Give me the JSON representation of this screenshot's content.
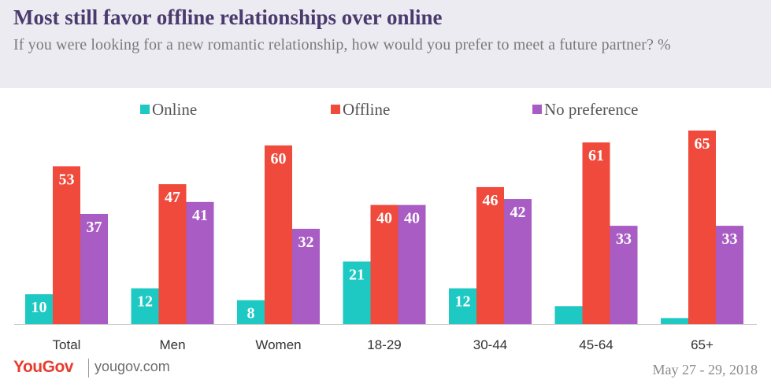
{
  "header": {
    "title": "Most still favor offline relationships over online",
    "subtitle": "If you were looking for a new romantic relationship, how would you prefer to meet a future partner? %"
  },
  "footer": {
    "brand": "YouGov",
    "url": "yougov.com",
    "date": "May 27 - 29, 2018"
  },
  "chart_data": {
    "type": "bar",
    "title": "Most still favor offline relationships over online",
    "subtitle": "If you were looking for a new romantic relationship, how would you prefer to meet a future partner? %",
    "categories": [
      "Total",
      "Men",
      "Women",
      "18-29",
      "30-44",
      "45-64",
      "65+"
    ],
    "series": [
      {
        "name": "Online",
        "color": "#1ec8c3",
        "values": [
          10,
          12,
          8,
          21,
          12,
          6,
          2
        ]
      },
      {
        "name": "Offline",
        "color": "#ef4a3c",
        "values": [
          53,
          47,
          60,
          40,
          46,
          61,
          65
        ]
      },
      {
        "name": "No preference",
        "color": "#a85cc4",
        "values": [
          37,
          41,
          32,
          40,
          42,
          33,
          33
        ]
      }
    ],
    "ylim": [
      0,
      65
    ],
    "grid": false,
    "legend": "top",
    "data_labels": true
  }
}
